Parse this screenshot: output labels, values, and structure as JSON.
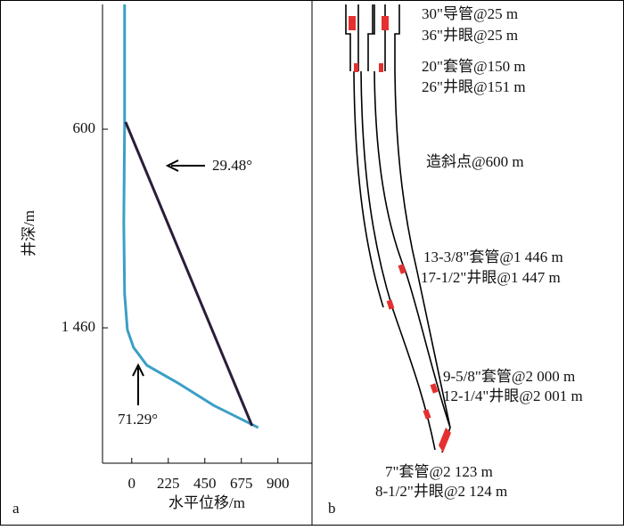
{
  "chart_data": {
    "type": "line",
    "xlabel": "水平位移/m",
    "ylabel": "井深/m",
    "panel_label": "a",
    "xlim": [
      -180,
      1110
    ],
    "ylim": [
      60,
      2046
    ],
    "y_inverted": true,
    "xticks": [
      0,
      225,
      450,
      675,
      900
    ],
    "yticks": [
      600,
      {
        "value": 1460,
        "label": "1 460"
      }
    ],
    "series": [
      {
        "color": "#3b9fc6",
        "x": [
          -44,
          -44,
          -49,
          -44,
          -27,
          11,
          93,
          285,
          505,
          779
        ],
        "values": [
          60,
          581,
          1005,
          1313,
          1468,
          1545,
          1622,
          1699,
          1796,
          1892
        ]
      },
      {
        "color": "#2b1d3a",
        "x": [
          -38,
          741
        ],
        "values": [
          569,
          1884
        ]
      }
    ],
    "annotations": [
      "29.48°",
      "71.29°"
    ]
  },
  "panel_b": {
    "panel_label": "b",
    "labels": [
      "30\"导管@25 m",
      "36\"井眼@25 m",
      "20\"套管@150 m",
      "26\"井眼@151 m",
      "造斜点@600 m",
      "13-3/8\"套管@1 446 m",
      "17-1/2\"井眼@1 447 m",
      "9-5/8\"套管@2 000 m",
      "12-1/4\"井眼@2 001 m",
      "7\"套管@2 123 m",
      "8-1/2\"井眼@2 124 m"
    ]
  }
}
